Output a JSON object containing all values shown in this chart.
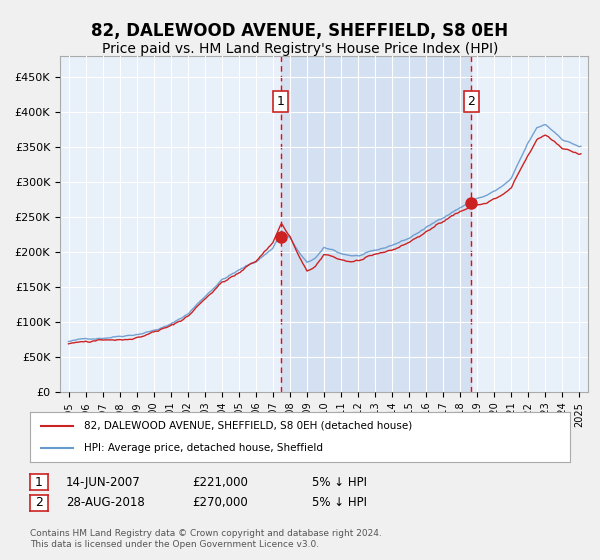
{
  "title": "82, DALEWOOD AVENUE, SHEFFIELD, S8 0EH",
  "subtitle": "Price paid vs. HM Land Registry's House Price Index (HPI)",
  "title_fontsize": 12,
  "subtitle_fontsize": 10,
  "bg_color": "#dde8f5",
  "plot_bg_color": "#e8f0fa",
  "grid_color": "#ffffff",
  "hpi_color": "#6699cc",
  "price_color": "#cc2222",
  "sale1_date_x": 2007.45,
  "sale1_price": 221000,
  "sale2_date_x": 2018.65,
  "sale2_price": 270000,
  "legend1": "82, DALEWOOD AVENUE, SHEFFIELD, S8 0EH (detached house)",
  "legend2": "HPI: Average price, detached house, Sheffield",
  "note1_label": "1",
  "note1_date": "14-JUN-2007",
  "note1_price": "£221,000",
  "note1_pct": "5% ↓ HPI",
  "note2_label": "2",
  "note2_date": "28-AUG-2018",
  "note2_price": "£270,000",
  "note2_pct": "5% ↓ HPI",
  "footer": "Contains HM Land Registry data © Crown copyright and database right 2024.\nThis data is licensed under the Open Government Licence v3.0.",
  "xmin": 1994.5,
  "xmax": 2025.5,
  "ymin": 0,
  "ymax": 480000
}
